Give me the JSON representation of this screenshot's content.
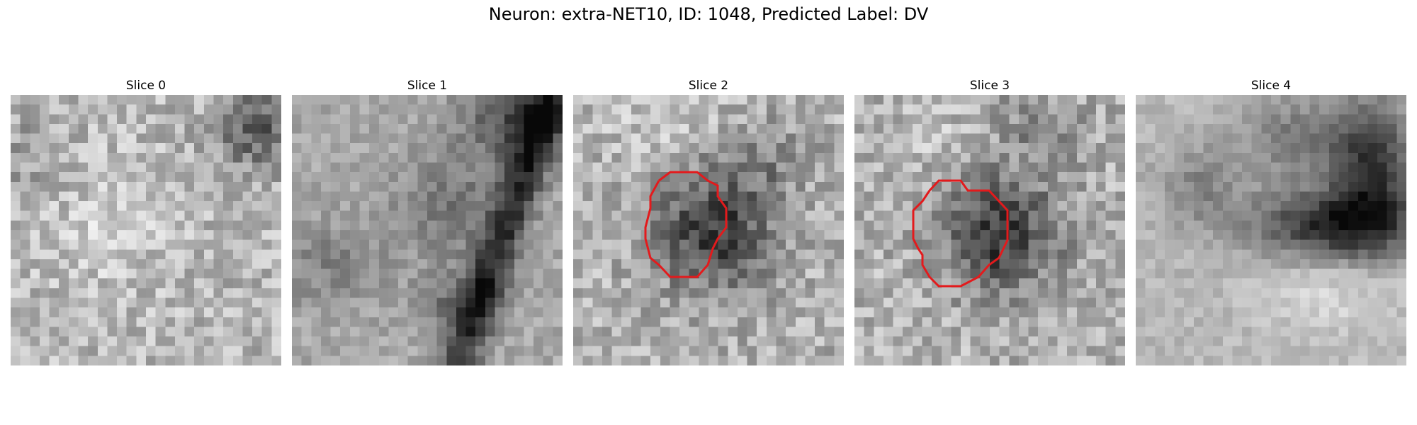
{
  "figure": {
    "title": "Neuron: extra-NET10, ID: 1048, Predicted Label: DV",
    "outline_color": "#e31a1c"
  },
  "panels": [
    {
      "title": "Slice 0",
      "has_outline": false
    },
    {
      "title": "Slice 1",
      "has_outline": false
    },
    {
      "title": "Slice 2",
      "has_outline": true
    },
    {
      "title": "Slice 3",
      "has_outline": true
    },
    {
      "title": "Slice 4",
      "has_outline": false
    }
  ]
}
